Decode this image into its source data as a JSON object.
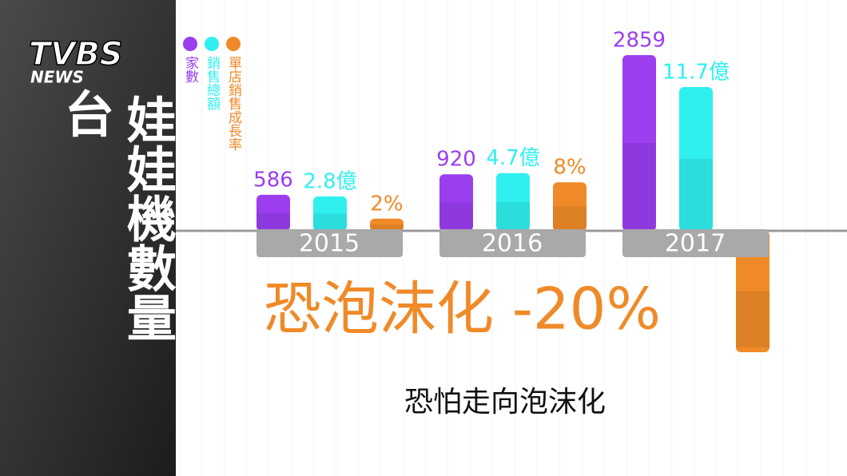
{
  "logo": {
    "main": "TVBS",
    "sub": "NEWS"
  },
  "title_lead": "台",
  "title": "娃娃機數量",
  "chart_data": {
    "type": "bar",
    "categories": [
      "2015",
      "2016",
      "2017"
    ],
    "series": [
      {
        "name": "家數",
        "color": "#9b3ef0",
        "values": [
          586,
          920,
          2859
        ]
      },
      {
        "name": "銷售總額",
        "color": "#2ff0ee",
        "values": [
          2.8,
          4.7,
          11.7
        ],
        "value_labels": [
          "2.8億",
          "4.7億",
          "11.7億"
        ]
      },
      {
        "name": "單店銷售成長率",
        "color": "#f08a28",
        "values": [
          2,
          8,
          -20
        ],
        "value_labels": [
          "2%",
          "8%",
          null
        ]
      }
    ],
    "annotation": "恐泡沫化 -20%"
  },
  "caption": "恐怕走向泡沫化"
}
